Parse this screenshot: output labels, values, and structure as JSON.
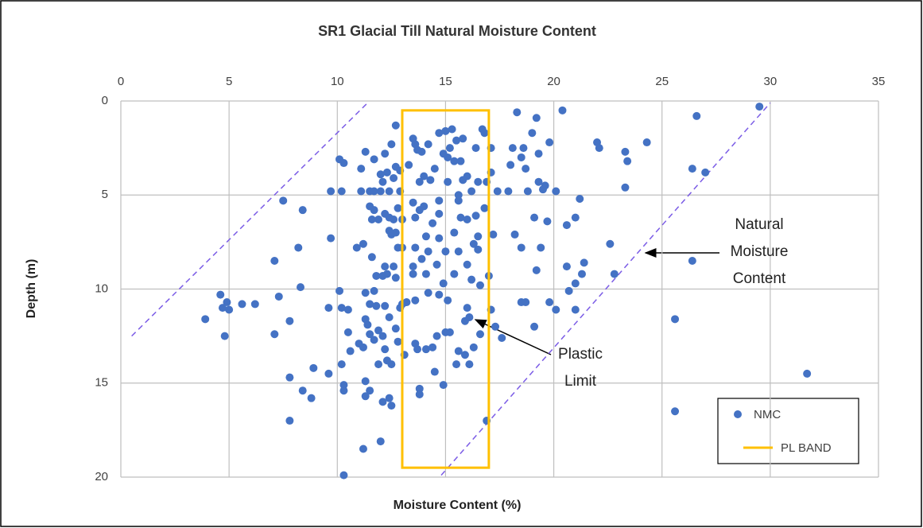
{
  "chart_data": {
    "type": "scatter",
    "title": "SR1 Glacial Till Natural Moisture Content",
    "xlabel": "Moisture Content (%)",
    "ylabel": "Depth (m)",
    "xlim": [
      0,
      35
    ],
    "ylim": [
      0,
      20
    ],
    "y_inverted": true,
    "x_axis_position": "top",
    "xticks": [
      0,
      5,
      10,
      15,
      20,
      25,
      30,
      35
    ],
    "yticks": [
      0,
      5,
      10,
      15,
      20
    ],
    "grid": true,
    "legend": "bottom-right",
    "series": [
      {
        "name": "NMC",
        "color": "#4472c4",
        "x": [
          29.5,
          26.6,
          26.4,
          27,
          24.3,
          23.3,
          23.4,
          22,
          22.1,
          23.3,
          26.4,
          22.8,
          22.6,
          25.6,
          31.7,
          25.6,
          20.4,
          19.2,
          18.3,
          19.8,
          19.3,
          18.1,
          18.6,
          19,
          18,
          18.5,
          18.7,
          19.6,
          19.3,
          19.5,
          18.8,
          20.1,
          21.2,
          21,
          20.6,
          19.7,
          19.1,
          18.2,
          18.5,
          17.2,
          19.4,
          21.4,
          20.6,
          21.3,
          21,
          20.7,
          19.8,
          20.1,
          21,
          19.2,
          18.5,
          18.7,
          19.1,
          17.6,
          17.3,
          17.1,
          17.1,
          17.4,
          17.9,
          17.1,
          15,
          15.3,
          14.7,
          16.7,
          16.8,
          15.5,
          15.8,
          16.4,
          15.2,
          14.9,
          15.1,
          13.5,
          13.6,
          13.7,
          13.3,
          12.7,
          13.9,
          14.2,
          14.5,
          15.7,
          15.4,
          14,
          14.3,
          13.8,
          15.1,
          15.8,
          16,
          16.5,
          16.9,
          16.2,
          15.6,
          15.6,
          14.7,
          13.5,
          14,
          13.8,
          14.7,
          13.6,
          14.4,
          15.7,
          16,
          16.4,
          16.8,
          16.5,
          16.3,
          15.4,
          14.7,
          14.1,
          13.6,
          13,
          14.2,
          15,
          15.6,
          16.5,
          16,
          14.6,
          13.9,
          13.5,
          13.5,
          14.1,
          15.4,
          16.2,
          16.6,
          17,
          14.9,
          14.2,
          13.6,
          13.2,
          13,
          14.7,
          15.1,
          16,
          16.1,
          15.9,
          15.2,
          14.6,
          13.6,
          13.7,
          14.1,
          14.4,
          13.1,
          15,
          15.6,
          15.9,
          16.3,
          16.6,
          15.5,
          16.1,
          14.5,
          14.9,
          13.8,
          13.8,
          16.9,
          12.5,
          11.3,
          11.7,
          12.2,
          12.7,
          12.9,
          12.3,
          12.6,
          12.1,
          12,
          11.1,
          10.3,
          10.1,
          9.7,
          10.2,
          11.1,
          11.5,
          12,
          12.4,
          11.7,
          12.9,
          12.8,
          11.5,
          11.7,
          12.2,
          12.4,
          11.6,
          11.9,
          12.6,
          13,
          12.4,
          12.7,
          12.5,
          11.2,
          10.9,
          11.6,
          12.8,
          12.2,
          12.6,
          12.1,
          12.3,
          11.8,
          12.7,
          11.3,
          11.7,
          11.5,
          11.8,
          12.2,
          12.9,
          12.4,
          11.3,
          11.4,
          11.9,
          12.7,
          10.5,
          10.2,
          9.6,
          10.5,
          11.5,
          11.7,
          12.1,
          12.8,
          11,
          11.2,
          10.6,
          12.2,
          12.3,
          11.9,
          12.5,
          10.2,
          9.6,
          10.3,
          10.3,
          11.5,
          11.3,
          12.4,
          12.5,
          12.1,
          11.3,
          8.4,
          8.8,
          8.9,
          7.8,
          7.8,
          12,
          11.2,
          10.3,
          9.7,
          8.2,
          7.5,
          8.4,
          7.1,
          8.3,
          10.1,
          7.3,
          6.2,
          5.6,
          4.9,
          4.6,
          4.7,
          5.0,
          3.9,
          7.8,
          7.1,
          4.8
        ],
        "y": [
          0.3,
          0.8,
          3.6,
          3.8,
          2.2,
          2.7,
          3.2,
          2.2,
          2.5,
          4.6,
          8.5,
          9.2,
          7.6,
          11.6,
          14.5,
          16.5,
          0.5,
          0.9,
          0.6,
          2.2,
          2.8,
          2.5,
          2.5,
          1.7,
          3.4,
          3.0,
          3.6,
          4.5,
          4.3,
          4.7,
          4.8,
          4.8,
          5.2,
          6.2,
          6.6,
          6.4,
          6.2,
          7.1,
          7.8,
          7.1,
          7.8,
          8.6,
          8.8,
          9.2,
          9.7,
          10.1,
          10.7,
          11.1,
          11.1,
          9.0,
          10.7,
          10.7,
          12.0,
          12.6,
          12.0,
          11.1,
          3.8,
          4.8,
          4.8,
          2.5,
          1.6,
          1.5,
          1.7,
          1.5,
          1.7,
          2.1,
          2.0,
          2.5,
          2.5,
          2.8,
          3.0,
          2.0,
          2.3,
          2.6,
          3.4,
          1.3,
          2.7,
          2.3,
          3.6,
          3.2,
          3.2,
          4.0,
          4.2,
          4.3,
          4.3,
          4.2,
          4.0,
          4.3,
          4.3,
          4.8,
          5.0,
          5.3,
          5.3,
          5.4,
          5.6,
          5.8,
          6.0,
          6.2,
          6.5,
          6.2,
          6.3,
          6.1,
          5.7,
          7.2,
          7.6,
          7.0,
          7.3,
          7.2,
          7.8,
          7.8,
          8.0,
          8.0,
          8.0,
          7.9,
          8.7,
          8.7,
          8.4,
          8.8,
          9.2,
          9.2,
          9.2,
          9.5,
          9.8,
          9.3,
          9.7,
          10.2,
          10.6,
          10.7,
          10.8,
          10.3,
          10.6,
          11.0,
          11.5,
          11.7,
          12.3,
          12.5,
          12.9,
          13.2,
          13.2,
          13.1,
          13.5,
          12.3,
          13.3,
          13.5,
          13.1,
          12.4,
          14,
          14,
          14.4,
          15.1,
          15.3,
          15.6,
          17,
          2.3,
          2.7,
          3.1,
          2.8,
          3.5,
          3.7,
          3.8,
          4.1,
          4.3,
          3.9,
          3.6,
          3.3,
          3.1,
          4.8,
          4.8,
          4.8,
          4.8,
          4.8,
          4.8,
          4.8,
          4.8,
          5.7,
          5.6,
          5.8,
          6.0,
          6.2,
          6.3,
          6.3,
          6.3,
          6.3,
          6.9,
          7.0,
          7.1,
          7.6,
          7.8,
          8.3,
          7.8,
          8.8,
          8.8,
          9.3,
          9.2,
          9.3,
          9.4,
          10.2,
          10.1,
          10.8,
          10.9,
          10.9,
          11.0,
          11.5,
          11.6,
          11.9,
          12.2,
          12.1,
          11.1,
          11.0,
          11.0,
          12.3,
          12.4,
          12.7,
          12.5,
          12.8,
          12.9,
          13.1,
          13.3,
          13.2,
          13.8,
          14,
          14,
          14,
          14.5,
          15.1,
          15.4,
          15.4,
          15.7,
          15.8,
          16.2,
          16,
          14.9,
          15.4,
          15.8,
          14.2,
          14.7,
          17.0,
          18.1,
          18.5,
          19.9,
          7.3,
          7.8,
          5.3,
          5.8,
          8.5,
          9.9,
          10.1,
          10.4,
          10.8,
          10.8,
          10.7,
          10.3,
          11.0,
          11.1,
          11.6,
          11.7,
          12.4,
          12.5
        ]
      }
    ],
    "band": {
      "name": "PL BAND",
      "color": "#ffc000",
      "x": [
        13,
        17
      ],
      "y": [
        0.5,
        19.5
      ]
    },
    "boundary_lines": [
      {
        "color": "#7b5ce6",
        "dash": true,
        "x": [
          0.5,
          11.4
        ],
        "y": [
          12.5,
          0.1
        ]
      },
      {
        "color": "#7b5ce6",
        "dash": true,
        "x": [
          14.8,
          30.0
        ],
        "y": [
          19.9,
          0.1
        ]
      }
    ],
    "annotations": [
      {
        "lines": [
          "Natural",
          "Moisture",
          "Content"
        ]
      },
      {
        "lines": [
          "Plastic",
          "Limit"
        ]
      }
    ]
  }
}
